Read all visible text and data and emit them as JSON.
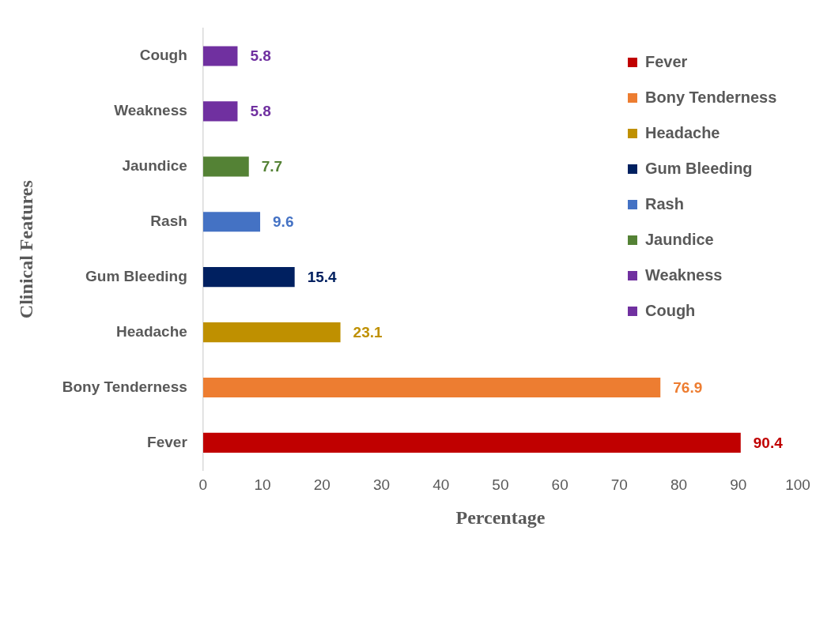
{
  "chart_data": {
    "type": "bar",
    "orientation": "horizontal",
    "xlabel": "Percentage",
    "ylabel": "Clinical Features",
    "categories": [
      "Cough",
      "Weakness",
      "Jaundice",
      "Rash",
      "Gum Bleeding",
      "Headache",
      "Bony Tenderness",
      "Fever"
    ],
    "series": [
      {
        "name": "Fever",
        "color": "#c00000",
        "values": [
          null,
          null,
          null,
          null,
          null,
          null,
          null,
          90.4
        ]
      },
      {
        "name": "Bony Tenderness",
        "color": "#ed7d31",
        "values": [
          null,
          null,
          null,
          null,
          null,
          null,
          76.9,
          null
        ]
      },
      {
        "name": "Headache",
        "color": "#bf9000",
        "values": [
          null,
          null,
          null,
          null,
          null,
          23.1,
          null,
          null
        ]
      },
      {
        "name": "Gum Bleeding",
        "color": "#002060",
        "values": [
          null,
          null,
          null,
          null,
          15.4,
          null,
          null,
          null
        ]
      },
      {
        "name": "Rash",
        "color": "#4472c4",
        "values": [
          null,
          null,
          null,
          9.6,
          null,
          null,
          null,
          null
        ]
      },
      {
        "name": "Jaundice",
        "color": "#548235",
        "values": [
          null,
          null,
          7.7,
          null,
          null,
          null,
          null,
          null
        ]
      },
      {
        "name": "Weakness",
        "color": "#7030a0",
        "values": [
          null,
          5.8,
          null,
          null,
          null,
          null,
          null,
          null
        ]
      },
      {
        "name": "Cough",
        "color": "#7030a0",
        "values": [
          5.8,
          null,
          null,
          null,
          null,
          null,
          null,
          null
        ]
      }
    ],
    "xlim": [
      0,
      100
    ],
    "xticks": [
      0,
      10,
      20,
      30,
      40,
      50,
      60,
      70,
      80,
      90,
      100
    ],
    "data_labels": true,
    "grid": false,
    "legend": "top right"
  }
}
